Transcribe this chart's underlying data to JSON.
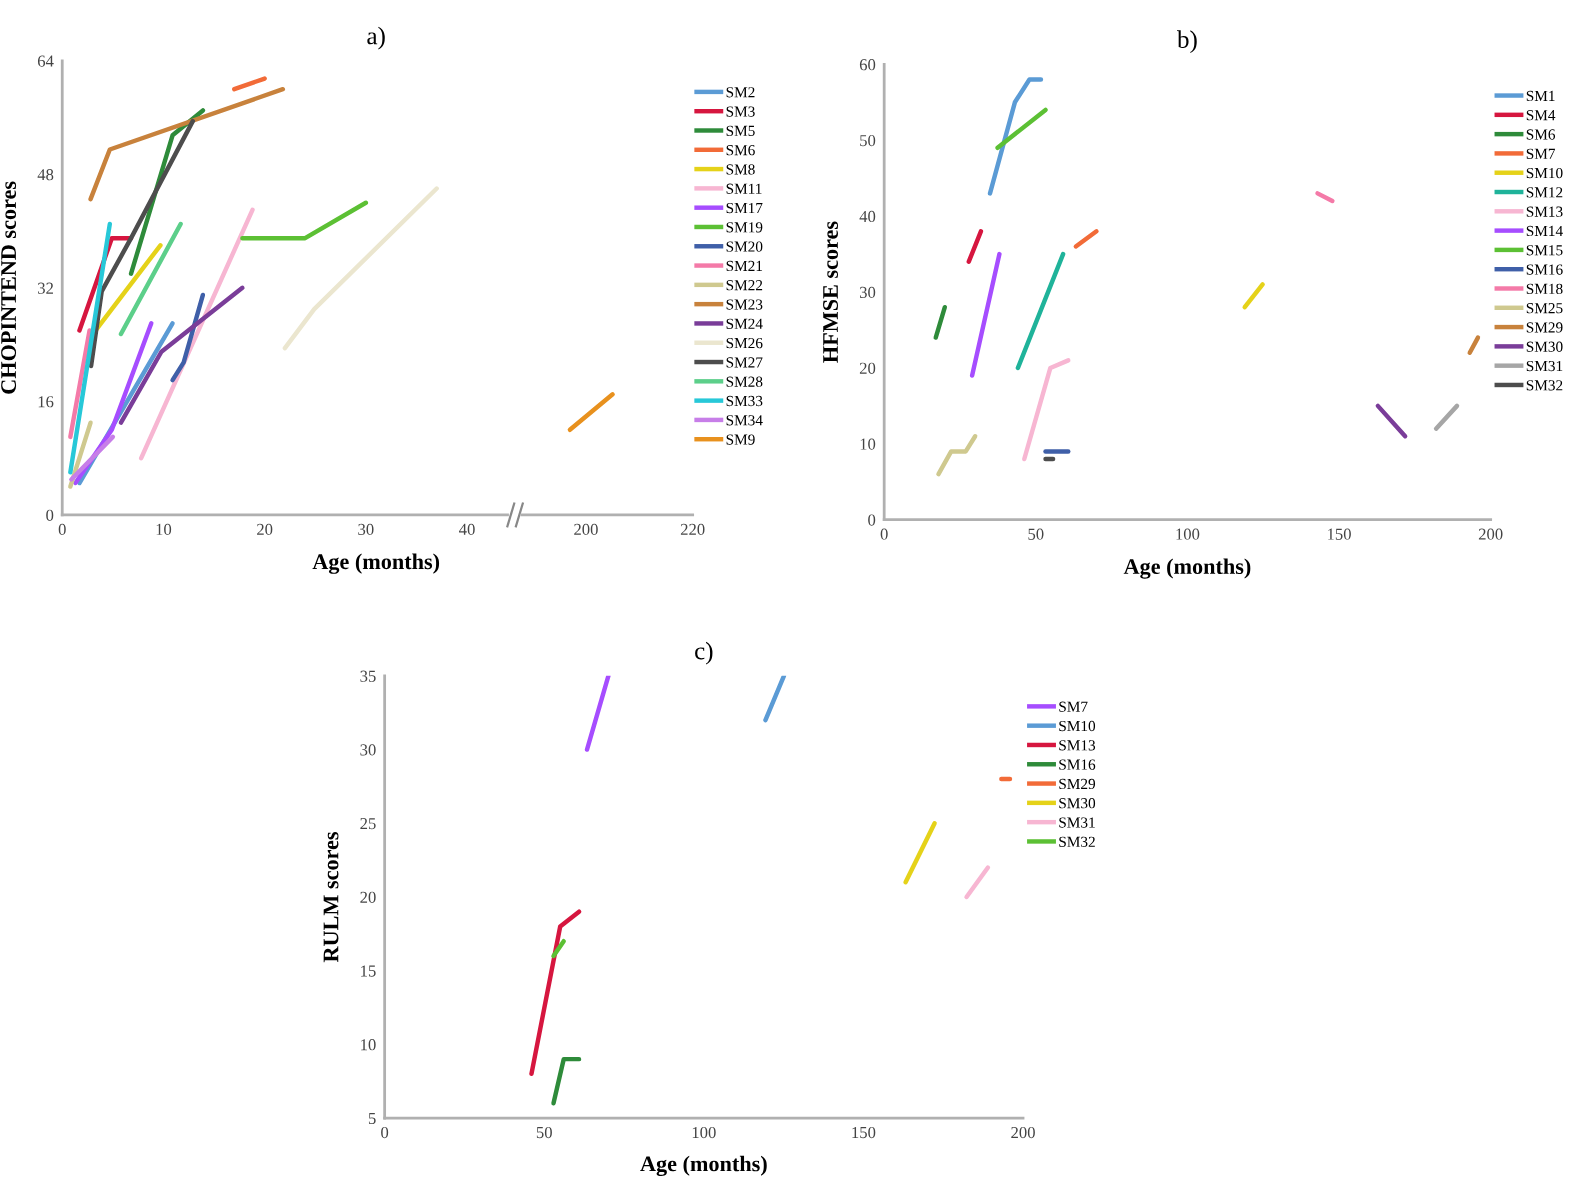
{
  "chart_data": [
    {
      "type": "line",
      "title": "a)",
      "xlabel": "Age (months)",
      "ylabel": "CHOPINTEND scores",
      "xlim": [
        0,
        44
      ],
      "ylim": [
        0,
        64
      ],
      "xticks": [
        0,
        10,
        20,
        30,
        40
      ],
      "yticks": [
        0,
        16,
        32,
        48,
        64
      ],
      "legend": "right",
      "series": [
        {
          "name": "SM2",
          "color": "#5b9bd5",
          "x": [
            1.7,
            10.9
          ],
          "values": [
            4.5,
            27
          ]
        },
        {
          "name": "SM3",
          "color": "#d6163f",
          "x": [
            1.7,
            4.9,
            6.8
          ],
          "values": [
            26,
            39,
            39
          ]
        },
        {
          "name": "SM5",
          "color": "#2e8b3a",
          "x": [
            6.8,
            10.9,
            13.9
          ],
          "values": [
            34,
            53.5,
            57
          ]
        },
        {
          "name": "SM6",
          "color": "#f26b38",
          "x": [
            17,
            20
          ],
          "values": [
            60,
            61.5
          ]
        },
        {
          "name": "SM8",
          "color": "#e5d219",
          "x": [
            3.3,
            9.7
          ],
          "values": [
            26,
            38
          ]
        },
        {
          "name": "SM11",
          "color": "#f7b6d2",
          "x": [
            7.8,
            18.8
          ],
          "values": [
            8,
            43
          ]
        },
        {
          "name": "SM17",
          "color": "#a64dff",
          "x": [
            1.3,
            4.9,
            8.8
          ],
          "values": [
            4.5,
            12,
            27
          ]
        },
        {
          "name": "SM19",
          "color": "#5cc034",
          "x": [
            17.8,
            24,
            30
          ],
          "values": [
            39,
            39,
            44
          ]
        },
        {
          "name": "SM20",
          "color": "#3f5fa8",
          "x": [
            10.9,
            12,
            13.9
          ],
          "values": [
            19,
            21.5,
            31
          ]
        },
        {
          "name": "SM21",
          "color": "#f47aa8",
          "x": [
            0.8,
            2.7
          ],
          "values": [
            11,
            26
          ]
        },
        {
          "name": "SM22",
          "color": "#cfc98f",
          "x": [
            0.8,
            2.8
          ],
          "values": [
            4,
            13
          ]
        },
        {
          "name": "SM23",
          "color": "#c8823c",
          "x": [
            2.8,
            4.7,
            21.8
          ],
          "values": [
            44.5,
            51.5,
            60
          ]
        },
        {
          "name": "SM24",
          "color": "#7a3d99",
          "x": [
            5.8,
            9.8,
            17.8
          ],
          "values": [
            13,
            23,
            32
          ]
        },
        {
          "name": "SM26",
          "color": "#ebe6cf",
          "x": [
            22,
            24.9,
            37
          ],
          "values": [
            23.5,
            29,
            46
          ]
        },
        {
          "name": "SM27",
          "color": "#4d4d4d",
          "x": [
            2.85,
            3.9,
            6.8,
            12.9
          ],
          "values": [
            21,
            31.5,
            39,
            55.5
          ]
        },
        {
          "name": "SM28",
          "color": "#5ccf8a",
          "x": [
            5.8,
            11.7
          ],
          "values": [
            25.5,
            41
          ]
        },
        {
          "name": "SM33",
          "color": "#27c8d8",
          "x": [
            0.8,
            4.7
          ],
          "values": [
            6,
            41
          ]
        },
        {
          "name": "SM34",
          "color": "#c77ee8",
          "x": [
            0.9,
            5
          ],
          "values": [
            5,
            11
          ]
        }
      ]
    },
    {
      "type": "line",
      "xlim": [
        188,
        220
      ],
      "ylim": [
        0,
        64
      ],
      "xticks": [
        200,
        220
      ],
      "tick_labels": "x",
      "series": [
        {
          "name": "SM9",
          "color": "#e8911e",
          "x": [
            197,
            205
          ],
          "values": [
            12,
            17
          ]
        }
      ]
    },
    {
      "type": "line",
      "title": "b)",
      "xlabel": "Age (months)",
      "ylabel": "HFMSE scores",
      "xlim": [
        0,
        200
      ],
      "ylim": [
        0,
        60
      ],
      "xticks": [
        0,
        50,
        100,
        150,
        200
      ],
      "yticks": [
        0,
        10,
        20,
        30,
        40,
        50,
        60
      ],
      "legend": "right",
      "series": [
        {
          "name": "SM1",
          "color": "#5b9bd5",
          "x": [
            34.9,
            43.1,
            47.9,
            51.7
          ],
          "values": [
            43,
            55,
            58,
            58
          ]
        },
        {
          "name": "SM4",
          "color": "#d6163f",
          "x": [
            27.9,
            31.9
          ],
          "values": [
            34,
            38
          ]
        },
        {
          "name": "SM6",
          "color": "#2e8b3a",
          "x": [
            17,
            20
          ],
          "values": [
            24,
            28
          ]
        },
        {
          "name": "SM7",
          "color": "#f26b38",
          "x": [
            63.2,
            70
          ],
          "values": [
            36,
            38
          ]
        },
        {
          "name": "SM10",
          "color": "#e5d219",
          "x": [
            118.9,
            124.8
          ],
          "values": [
            28,
            31
          ]
        },
        {
          "name": "SM12",
          "color": "#1fb39a",
          "x": [
            44.1,
            59
          ],
          "values": [
            20,
            35
          ]
        },
        {
          "name": "SM13",
          "color": "#f7b6d2",
          "x": [
            46.2,
            54.8,
            60.7
          ],
          "values": [
            8,
            20,
            21
          ]
        },
        {
          "name": "SM14",
          "color": "#a64dff",
          "x": [
            29,
            38
          ],
          "values": [
            19,
            35
          ]
        },
        {
          "name": "SM15",
          "color": "#5cc034",
          "x": [
            37.4,
            53.2
          ],
          "values": [
            49,
            54
          ]
        },
        {
          "name": "SM16",
          "color": "#3f5fa8",
          "x": [
            53.2,
            60.7
          ],
          "values": [
            9,
            9
          ]
        },
        {
          "name": "SM18",
          "color": "#f47aa8",
          "x": [
            142.9,
            147.8
          ],
          "values": [
            43,
            42
          ]
        },
        {
          "name": "SM25",
          "color": "#cfc98f",
          "x": [
            17.9,
            22.1,
            26.9,
            30
          ],
          "values": [
            6,
            9,
            9,
            11
          ]
        },
        {
          "name": "SM29",
          "color": "#c8823c",
          "x": [
            193.1,
            195.8
          ],
          "values": [
            22,
            24
          ]
        },
        {
          "name": "SM30",
          "color": "#7a3d99",
          "x": [
            162.8,
            171.8
          ],
          "values": [
            15,
            11
          ]
        },
        {
          "name": "SM31",
          "color": "#a6a6a6",
          "x": [
            182,
            188.9
          ],
          "values": [
            12,
            15
          ]
        },
        {
          "name": "SM32",
          "color": "#4d4d4d",
          "x": [
            53.2,
            55.7
          ],
          "values": [
            8,
            8
          ]
        }
      ]
    },
    {
      "type": "line",
      "title": "c)",
      "xlabel": "Age (months)",
      "ylabel": "RULM scores",
      "xlim": [
        0,
        200
      ],
      "ylim": [
        5,
        35
      ],
      "xticks": [
        0,
        50,
        100,
        150,
        200
      ],
      "yticks": [
        5,
        10,
        15,
        20,
        25,
        30,
        35
      ],
      "legend": "right",
      "series": [
        {
          "name": "SM7",
          "color": "#a64dff",
          "x": [
            63.4,
            70.1
          ],
          "values": [
            30,
            35
          ]
        },
        {
          "name": "SM10",
          "color": "#5b9bd5",
          "x": [
            119.3,
            125.1
          ],
          "values": [
            32,
            35
          ]
        },
        {
          "name": "SM13",
          "color": "#d6163f",
          "x": [
            46,
            55,
            60.9
          ],
          "values": [
            8,
            18,
            19
          ]
        },
        {
          "name": "SM16",
          "color": "#2e8b3a",
          "x": [
            52.9,
            56.1,
            60.9
          ],
          "values": [
            6,
            9,
            9
          ]
        },
        {
          "name": "SM29",
          "color": "#f26b38",
          "x": [
            193.2,
            195.9
          ],
          "values": [
            28,
            28
          ]
        },
        {
          "name": "SM30",
          "color": "#e5d219",
          "x": [
            163.2,
            172.3
          ],
          "values": [
            21,
            25
          ]
        },
        {
          "name": "SM31",
          "color": "#f7b6d2",
          "x": [
            182.3,
            189
          ],
          "values": [
            20,
            22
          ]
        },
        {
          "name": "SM32",
          "color": "#5cc034",
          "x": [
            52.9,
            56.1
          ],
          "values": [
            16,
            17
          ]
        }
      ]
    }
  ]
}
